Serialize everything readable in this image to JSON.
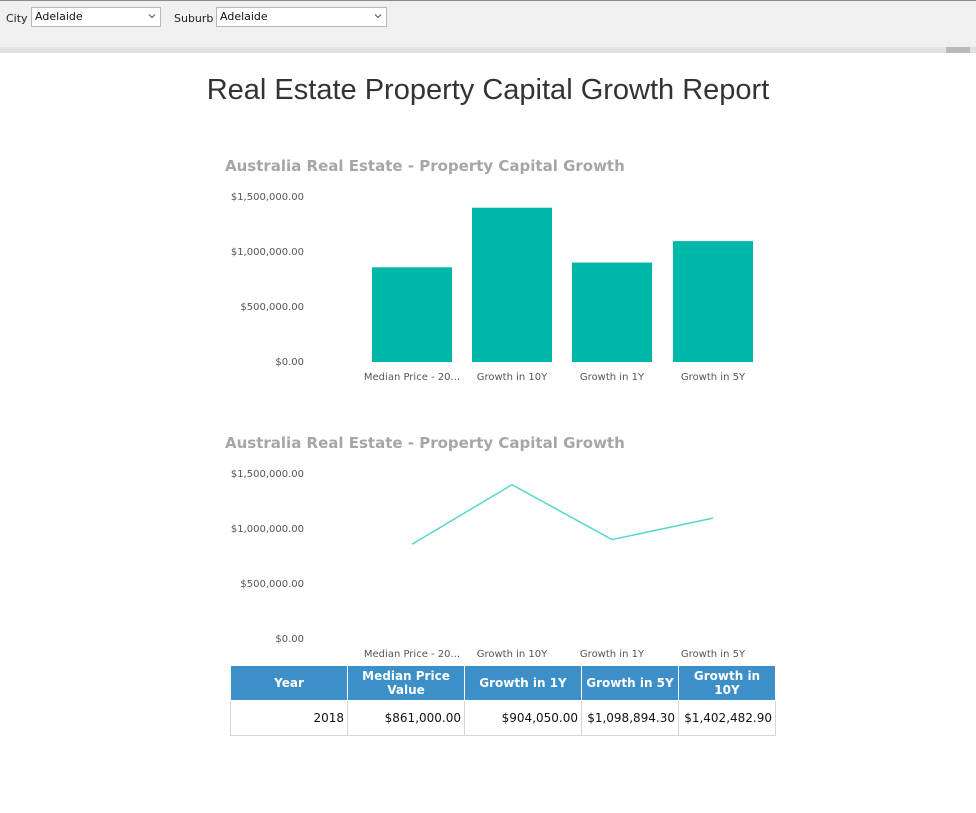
{
  "filters": {
    "city": {
      "label": "City",
      "value": "Adelaide"
    },
    "suburb": {
      "label": "Suburb",
      "value": "Adelaide"
    }
  },
  "report_title": "Real Estate Property Capital Growth Report",
  "colors": {
    "bar": "#00b8a9",
    "line": "#57d6d0",
    "table_header": "#3c8fc7"
  },
  "chart_data": [
    {
      "type": "bar",
      "title": "Australia Real Estate  - Property Capital Growth",
      "categories": [
        "Median Price - 20...",
        "Growth in 10Y",
        "Growth in 1Y",
        "Growth in 5Y"
      ],
      "values": [
        861000,
        1402482.9,
        904050,
        1098894.3
      ],
      "yticks": [
        "$1,500,000.00",
        "$1,000,000.00",
        "$500,000.00",
        "$0.00"
      ],
      "ylim": [
        0,
        1500000
      ],
      "color": "#00b8a9"
    },
    {
      "type": "line",
      "title": "Australia Real Estate - Property Capital Growth",
      "categories": [
        "Median Price - 20...",
        "Growth in 10Y",
        "Growth in 1Y",
        "Growth in 5Y"
      ],
      "values": [
        861000,
        1402482.9,
        904050,
        1098894.3
      ],
      "yticks": [
        "$1,500,000.00",
        "$1,000,000.00",
        "$500,000.00",
        "$0.00"
      ],
      "ylim": [
        0,
        1500000
      ],
      "color": "#57d6d0"
    }
  ],
  "table": {
    "headers": [
      "Year",
      "Median Price Value",
      "Growth in 1Y",
      "Growth in 5Y",
      "Growth in 10Y"
    ],
    "rows": [
      [
        "2018",
        "$861,000.00",
        "$904,050.00",
        "$1,098,894.30",
        "$1,402,482.90"
      ]
    ]
  }
}
